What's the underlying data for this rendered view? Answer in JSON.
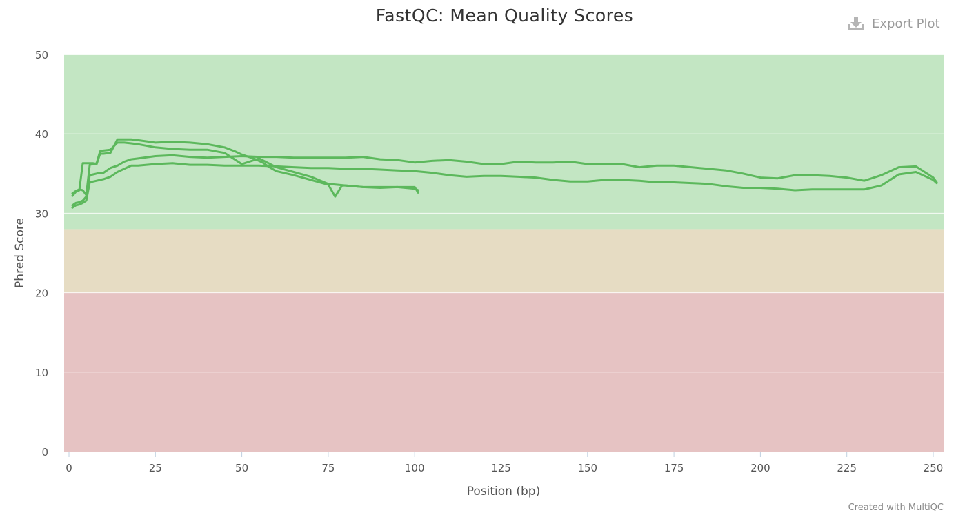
{
  "header": {
    "title": "FastQC: Mean Quality Scores",
    "export_label": "Export Plot",
    "credit": "Created with MultiQC"
  },
  "colors": {
    "line": "#5cb85c",
    "band_good": "#c3e6c3",
    "band_warn": "#e6dcc3",
    "band_fail": "#e6c3c3"
  },
  "chart_data": {
    "type": "line",
    "title": "FastQC: Mean Quality Scores",
    "xlabel": "Position (bp)",
    "ylabel": "Phred Score",
    "xlim": [
      0,
      251
    ],
    "ylim": [
      0,
      50
    ],
    "xticks": [
      0,
      25,
      50,
      75,
      100,
      125,
      150,
      175,
      200,
      225,
      250
    ],
    "yticks": [
      0,
      10,
      20,
      30,
      40,
      50
    ],
    "grid": true,
    "legend": "none",
    "bands": [
      {
        "from": 28,
        "to": 50,
        "status": "pass"
      },
      {
        "from": 20,
        "to": 28,
        "status": "warn"
      },
      {
        "from": 0,
        "to": 20,
        "status": "fail"
      }
    ],
    "series": [
      {
        "x": [
          1,
          2,
          3,
          4,
          5,
          6,
          7,
          8,
          9,
          10,
          12,
          14,
          16,
          18,
          20,
          25,
          30,
          35,
          40,
          45,
          50,
          55,
          60,
          65,
          70,
          75,
          80,
          85,
          90,
          95,
          100,
          101
        ],
        "y": [
          32.5,
          32.8,
          33.0,
          32.9,
          32.3,
          36.1,
          36.2,
          36.3,
          37.8,
          37.9,
          38.0,
          38.9,
          38.9,
          38.8,
          38.7,
          38.3,
          38.1,
          38.0,
          38.0,
          37.6,
          36.2,
          36.9,
          35.8,
          35.2,
          34.6,
          33.7,
          33.5,
          33.3,
          33.3,
          33.3,
          33.1,
          32.9
        ]
      },
      {
        "x": [
          1,
          2,
          3,
          4,
          5,
          6,
          7,
          8,
          9,
          10,
          12,
          14,
          16,
          18,
          20,
          25,
          30,
          35,
          40,
          45,
          48,
          50,
          52,
          54,
          56,
          58,
          60,
          65,
          70,
          75,
          77,
          79,
          80,
          85,
          90,
          95,
          100,
          101
        ],
        "y": [
          32.2,
          32.7,
          32.9,
          36.3,
          36.3,
          36.3,
          36.3,
          36.2,
          37.5,
          37.5,
          37.6,
          39.3,
          39.3,
          39.3,
          39.2,
          38.9,
          39.0,
          38.9,
          38.7,
          38.3,
          37.8,
          37.4,
          37.1,
          36.8,
          36.4,
          35.8,
          35.3,
          34.8,
          34.2,
          33.6,
          32.1,
          33.5,
          33.5,
          33.3,
          33.2,
          33.3,
          33.3,
          32.6
        ]
      },
      {
        "x": [
          1,
          2,
          3,
          4,
          5,
          6,
          7,
          8,
          9,
          10,
          12,
          14,
          16,
          18,
          20,
          25,
          30,
          35,
          40,
          45,
          50,
          55,
          60,
          65,
          70,
          75,
          80,
          85,
          90,
          95,
          100,
          105,
          110,
          115,
          120,
          125,
          130,
          135,
          140,
          145,
          150,
          155,
          160,
          165,
          170,
          175,
          180,
          185,
          190,
          195,
          200,
          205,
          210,
          215,
          220,
          225,
          230,
          235,
          240,
          245,
          250,
          251
        ],
        "y": [
          31.0,
          31.3,
          31.4,
          31.6,
          32.1,
          34.8,
          34.9,
          35.0,
          35.1,
          35.1,
          35.7,
          36.0,
          36.5,
          36.8,
          36.9,
          37.2,
          37.3,
          37.1,
          37.0,
          37.1,
          37.2,
          37.1,
          37.1,
          37.0,
          37.0,
          37.0,
          37.0,
          37.1,
          36.8,
          36.7,
          36.4,
          36.6,
          36.7,
          36.5,
          36.2,
          36.2,
          36.5,
          36.4,
          36.4,
          36.5,
          36.2,
          36.2,
          36.2,
          35.8,
          36.0,
          36.0,
          35.8,
          35.6,
          35.4,
          35.0,
          34.5,
          34.4,
          34.8,
          34.8,
          34.7,
          34.5,
          34.1,
          34.8,
          35.8,
          35.9,
          34.5,
          33.9
        ]
      },
      {
        "x": [
          1,
          2,
          3,
          4,
          5,
          6,
          7,
          8,
          9,
          10,
          12,
          14,
          16,
          18,
          20,
          25,
          30,
          35,
          40,
          45,
          50,
          55,
          60,
          65,
          70,
          75,
          80,
          85,
          90,
          95,
          100,
          105,
          110,
          115,
          120,
          125,
          130,
          135,
          140,
          145,
          150,
          155,
          160,
          165,
          170,
          175,
          180,
          185,
          190,
          195,
          200,
          205,
          210,
          215,
          220,
          225,
          230,
          235,
          240,
          245,
          250,
          251
        ],
        "y": [
          30.7,
          31.0,
          31.1,
          31.3,
          31.6,
          33.9,
          34.0,
          34.1,
          34.2,
          34.3,
          34.6,
          35.2,
          35.6,
          36.0,
          36.0,
          36.2,
          36.3,
          36.1,
          36.1,
          36.0,
          36.0,
          36.0,
          35.9,
          35.8,
          35.7,
          35.7,
          35.6,
          35.6,
          35.5,
          35.4,
          35.3,
          35.1,
          34.8,
          34.6,
          34.7,
          34.7,
          34.6,
          34.5,
          34.2,
          34.0,
          34.0,
          34.2,
          34.2,
          34.1,
          33.9,
          33.9,
          33.8,
          33.7,
          33.4,
          33.2,
          33.2,
          33.1,
          32.9,
          33.0,
          33.0,
          33.0,
          33.0,
          33.5,
          34.9,
          35.2,
          34.2,
          33.8
        ]
      }
    ]
  }
}
